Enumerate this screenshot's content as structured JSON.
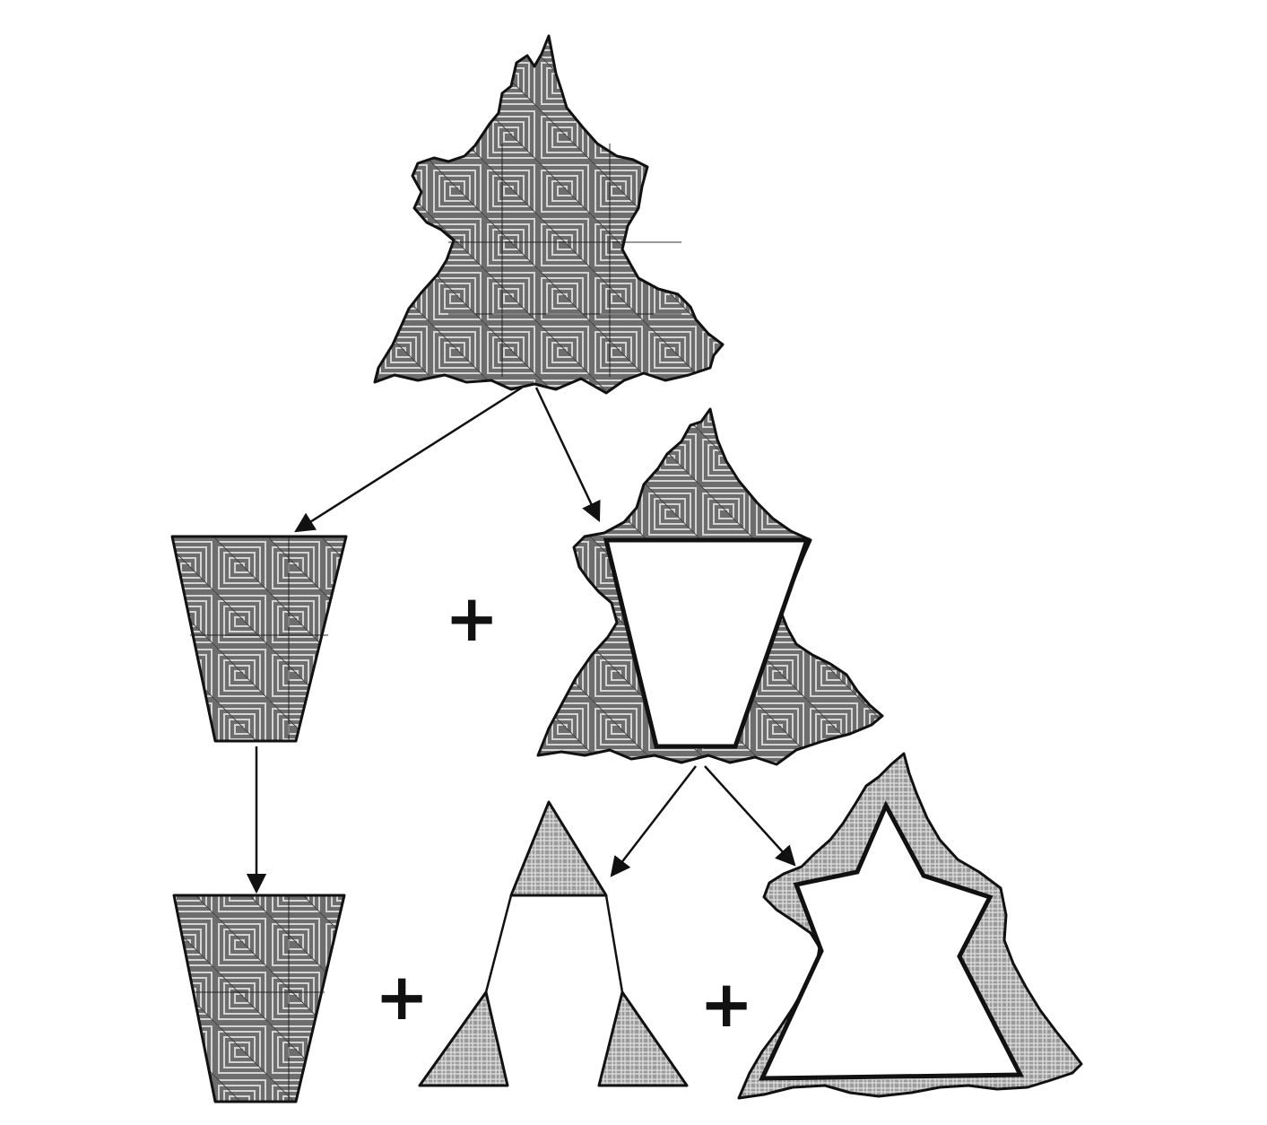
{
  "operators": {
    "plus_middle": "+",
    "plus_bottom_left": "+",
    "plus_bottom_right": "+"
  },
  "colors": {
    "ink": "#111111",
    "texture_dark": "#3a3a3a",
    "texture_mid": "#8a8a8a",
    "texture_light": "#c8c8c8",
    "background": "#ffffff"
  },
  "shapes": [
    "root-fractal-tree",
    "middle-left-trapezoid",
    "middle-right-fractal-with-trapezoid-hole",
    "bottom-left-trapezoid",
    "bottom-middle-three-triangles",
    "bottom-right-fractal-outline"
  ]
}
